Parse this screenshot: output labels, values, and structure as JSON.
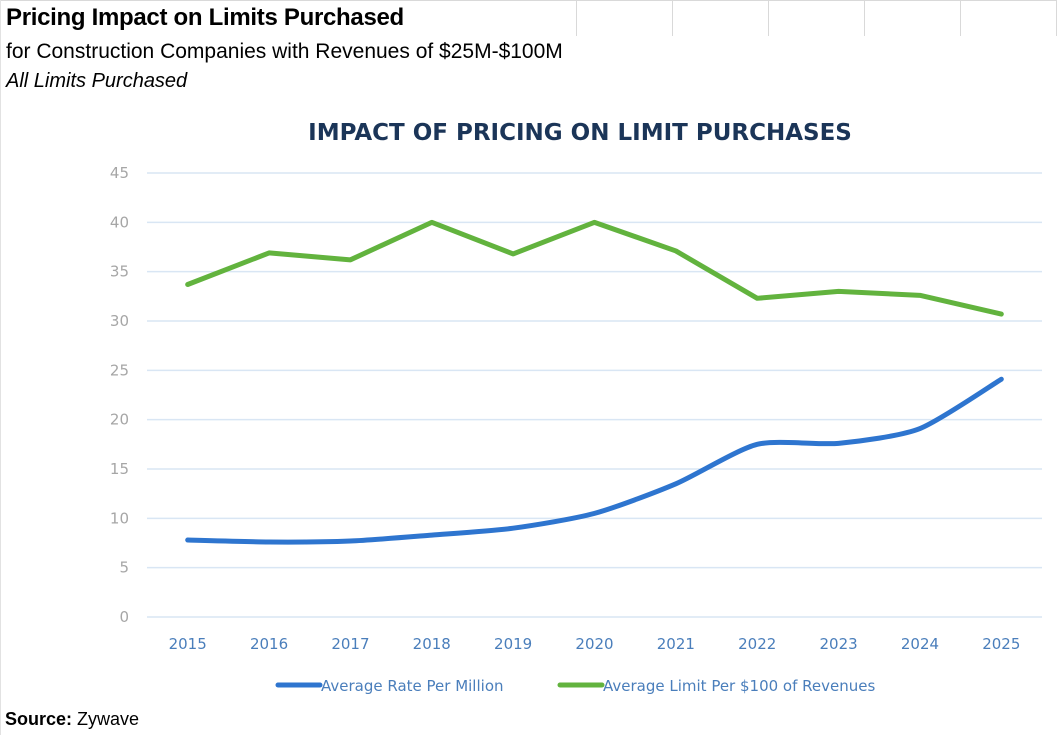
{
  "header": {
    "title": "Pricing Impact on Limits Purchased",
    "subtitle": "for Construction Companies with Revenues of $25M-$100M",
    "note": "All Limits Purchased"
  },
  "footer": {
    "source_label": "Source:",
    "source_value": "Zywave"
  },
  "chart_data": {
    "type": "line",
    "title": "IMPACT OF PRICING ON LIMIT PURCHASES",
    "xlabel": "",
    "ylabel": "",
    "categories": [
      "2015",
      "2016",
      "2017",
      "2018",
      "2019",
      "2020",
      "2021",
      "2022",
      "2023",
      "2024",
      "2025"
    ],
    "ylim": [
      0,
      45
    ],
    "yticks": [
      0,
      5,
      10,
      15,
      20,
      25,
      30,
      35,
      40,
      45
    ],
    "grid": true,
    "legend_position": "bottom",
    "series": [
      {
        "name": "Average Rate Per Million",
        "color": "#2e75cf",
        "values": [
          7.8,
          7.6,
          7.7,
          8.3,
          9.0,
          10.5,
          13.5,
          17.5,
          17.6,
          19.1,
          24.1
        ]
      },
      {
        "name": "Average Limit Per $100 of Revenues",
        "color": "#62b33e",
        "values": [
          33.7,
          36.9,
          36.2,
          40.0,
          36.8,
          40.0,
          37.1,
          32.3,
          33.0,
          32.6,
          30.7
        ]
      }
    ]
  }
}
